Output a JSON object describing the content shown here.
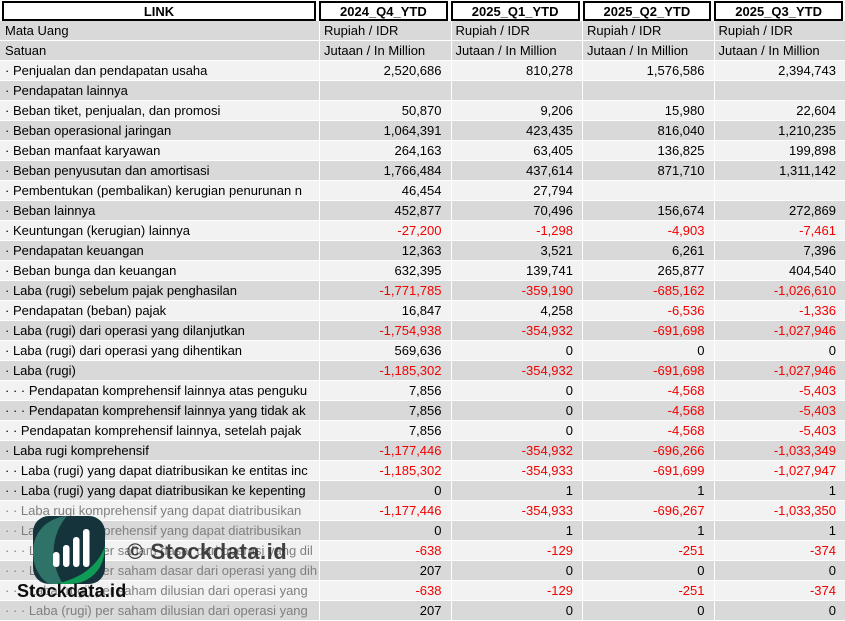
{
  "header": {
    "link_label": "LINK",
    "columns": [
      "2024_Q4_YTD",
      "2025_Q1_YTD",
      "2025_Q2_YTD",
      "2025_Q3_YTD"
    ]
  },
  "table": {
    "rows": [
      {
        "label": "Mata Uang",
        "align": "left",
        "values": [
          "Rupiah / IDR",
          "Rupiah / IDR",
          "Rupiah / IDR",
          "Rupiah / IDR"
        ]
      },
      {
        "label": "Satuan",
        "align": "left",
        "values": [
          "Jutaan / In Million",
          "Jutaan / In Million",
          "Jutaan / In Million",
          "Jutaan / In Million"
        ]
      },
      {
        "label": "· Penjualan dan pendapatan usaha",
        "values": [
          "2,520,686",
          "810,278",
          "1,576,586",
          "2,394,743"
        ]
      },
      {
        "label": "· Pendapatan lainnya",
        "values": [
          "",
          "",
          "",
          ""
        ]
      },
      {
        "label": "· Beban tiket, penjualan, dan promosi",
        "values": [
          "50,870",
          "9,206",
          "15,980",
          "22,604"
        ]
      },
      {
        "label": "· Beban operasional jaringan",
        "values": [
          "1,064,391",
          "423,435",
          "816,040",
          "1,210,235"
        ]
      },
      {
        "label": "· Beban manfaat karyawan",
        "values": [
          "264,163",
          "63,405",
          "136,825",
          "199,898"
        ]
      },
      {
        "label": "· Beban penyusutan dan amortisasi",
        "values": [
          "1,766,484",
          "437,614",
          "871,710",
          "1,311,142"
        ]
      },
      {
        "label": "· Pembentukan (pembalikan) kerugian penurunan n",
        "values": [
          "46,454",
          "27,794",
          "",
          ""
        ]
      },
      {
        "label": "· Beban lainnya",
        "values": [
          "452,877",
          "70,496",
          "156,674",
          "272,869"
        ]
      },
      {
        "label": "· Keuntungan (kerugian) lainnya",
        "values": [
          "-27,200",
          "-1,298",
          "-4,903",
          "-7,461"
        ]
      },
      {
        "label": "· Pendapatan keuangan",
        "values": [
          "12,363",
          "3,521",
          "6,261",
          "7,396"
        ]
      },
      {
        "label": "· Beban bunga dan keuangan",
        "values": [
          "632,395",
          "139,741",
          "265,877",
          "404,540"
        ]
      },
      {
        "label": "· Laba (rugi) sebelum pajak penghasilan",
        "values": [
          "-1,771,785",
          "-359,190",
          "-685,162",
          "-1,026,610"
        ]
      },
      {
        "label": "· Pendapatan (beban) pajak",
        "values": [
          "16,847",
          "4,258",
          "-6,536",
          "-1,336"
        ]
      },
      {
        "label": "· Laba (rugi) dari operasi yang dilanjutkan",
        "values": [
          "-1,754,938",
          "-354,932",
          "-691,698",
          "-1,027,946"
        ]
      },
      {
        "label": "· Laba (rugi) dari operasi yang dihentikan",
        "values": [
          "569,636",
          "0",
          "0",
          "0"
        ]
      },
      {
        "label": "· Laba (rugi)",
        "values": [
          "-1,185,302",
          "-354,932",
          "-691,698",
          "-1,027,946"
        ]
      },
      {
        "label": "· · · Pendapatan komprehensif lainnya atas penguku",
        "values": [
          "7,856",
          "0",
          "-4,568",
          "-5,403"
        ]
      },
      {
        "label": "· · · Pendapatan komprehensif lainnya yang tidak ak",
        "values": [
          "7,856",
          "0",
          "-4,568",
          "-5,403"
        ]
      },
      {
        "label": "· · Pendapatan komprehensif lainnya, setelah pajak",
        "values": [
          "7,856",
          "0",
          "-4,568",
          "-5,403"
        ]
      },
      {
        "label": "· Laba rugi komprehensif",
        "values": [
          "-1,177,446",
          "-354,932",
          "-696,266",
          "-1,033,349"
        ]
      },
      {
        "label": "· · Laba (rugi) yang dapat diatribusikan ke entitas inc",
        "values": [
          "-1,185,302",
          "-354,933",
          "-691,699",
          "-1,027,947"
        ]
      },
      {
        "label": "· · Laba (rugi) yang dapat diatribusikan ke kepenting",
        "values": [
          "0",
          "1",
          "1",
          "1"
        ]
      },
      {
        "label": "· · Laba rugi komprehensif yang dapat diatribusikan",
        "muted": true,
        "values": [
          "-1,177,446",
          "-354,933",
          "-696,267",
          "-1,033,350"
        ]
      },
      {
        "label": "· · Laba rugi komprehensif yang dapat diatribusikan",
        "muted": true,
        "values": [
          "0",
          "1",
          "1",
          "1"
        ]
      },
      {
        "label": "· · · Laba (rugi) per saham dasar dari operasi yang dil",
        "muted": true,
        "values": [
          "-638",
          "-129",
          "-251",
          "-374"
        ]
      },
      {
        "label": "· · · Laba (rugi) per saham dasar dari operasi yang dih",
        "muted": true,
        "values": [
          "207",
          "0",
          "0",
          "0"
        ]
      },
      {
        "label": "· · · Laba (rugi) per saham dilusian dari operasi yang",
        "muted": true,
        "values": [
          "-638",
          "-129",
          "-251",
          "-374"
        ]
      },
      {
        "label": "· · · Laba (rugi) per saham dilusian dari operasi yang",
        "muted": true,
        "values": [
          "207",
          "0",
          "0",
          "0"
        ]
      }
    ]
  },
  "watermark": {
    "text": "© Stockdata.id"
  },
  "logo": {
    "text": "Stockdata.id",
    "icon": "bar-chart-leaf-icon",
    "colors": {
      "dark": "#14333b",
      "teal": "#2e7268",
      "green": "#0f9b55",
      "bars": "#ffffff"
    }
  },
  "colors": {
    "negative": "#f30000",
    "row_gray": "#d9d9d9",
    "row_light": "#f2f2f2",
    "muted_label": "#7f7f7f"
  }
}
